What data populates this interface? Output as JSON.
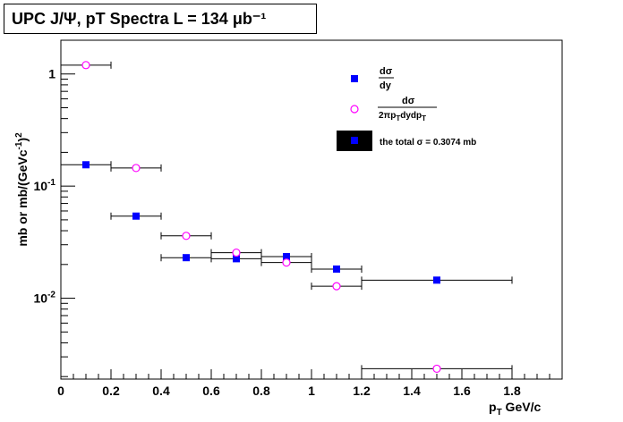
{
  "chart_data": {
    "type": "scatter",
    "title": "UPC J/Ψ, pT Spectra L = 134 μb⁻¹",
    "xlabel": "pT GeV/c",
    "ylabel": "mb or mb/(GeVc⁻¹)²",
    "x_scale": "linear",
    "y_scale": "log",
    "xlim": [
      0,
      2.0
    ],
    "ylim": [
      0.0019,
      2.0
    ],
    "x_ticks": [
      "0",
      "0.2",
      "0.4",
      "0.6",
      "0.8",
      "1",
      "1.2",
      "1.4",
      "1.6",
      "1.8"
    ],
    "y_ticks": [
      "1",
      "10⁻¹",
      "10⁻²"
    ],
    "grid": false,
    "legend_position": "top-right",
    "series": [
      {
        "name": "dσ/dy",
        "marker": "filled-square",
        "color": "#0000ff",
        "points": [
          {
            "x": 0.1,
            "y": 0.155,
            "xerr": 0.1
          },
          {
            "x": 0.3,
            "y": 0.054,
            "xerr": 0.1
          },
          {
            "x": 0.5,
            "y": 0.023,
            "xerr": 0.1
          },
          {
            "x": 0.7,
            "y": 0.0225,
            "xerr": 0.1
          },
          {
            "x": 0.9,
            "y": 0.0235,
            "xerr": 0.1
          },
          {
            "x": 1.1,
            "y": 0.0182,
            "xerr": 0.1
          },
          {
            "x": 1.5,
            "y": 0.0145,
            "xerr": 0.3
          }
        ]
      },
      {
        "name": "dσ/(2πpT dy dpT)",
        "marker": "open-circle",
        "color": "#ff00ff",
        "points": [
          {
            "x": 0.1,
            "y": 1.2,
            "xerr": 0.1
          },
          {
            "x": 0.3,
            "y": 0.145,
            "xerr": 0.1
          },
          {
            "x": 0.5,
            "y": 0.036,
            "xerr": 0.1
          },
          {
            "x": 0.7,
            "y": 0.0255,
            "xerr": 0.1
          },
          {
            "x": 0.9,
            "y": 0.0208,
            "xerr": 0.1
          },
          {
            "x": 1.1,
            "y": 0.0128,
            "xerr": 0.1
          },
          {
            "x": 1.5,
            "y": 0.00235,
            "xerr": 0.3
          }
        ]
      }
    ],
    "legend": [
      {
        "marker": "filled-square",
        "label_num": "dσ",
        "label_den": "dy"
      },
      {
        "marker": "open-circle",
        "label_num": "dσ",
        "label_den": "2πpTdydpT"
      },
      {
        "marker": "filled-square-on-black",
        "label": "the total σ = 0.3074 mb"
      }
    ]
  }
}
